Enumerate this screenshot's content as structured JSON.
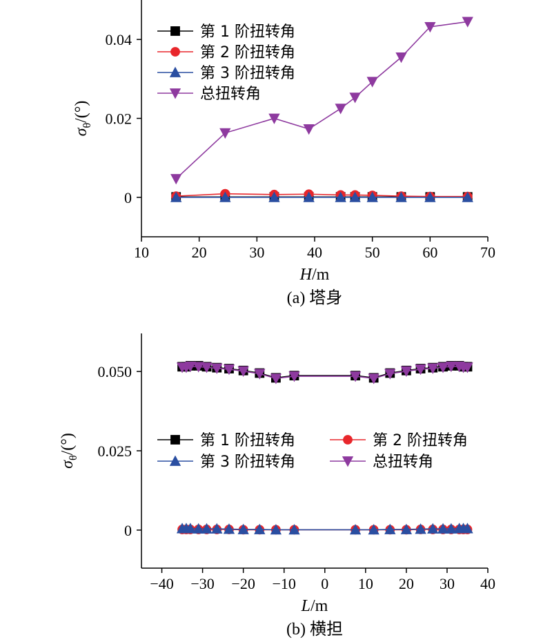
{
  "chart_data": [
    {
      "type": "line",
      "caption": "(a) 塔身",
      "ylabel_main": "σ",
      "ylabel_sub": "θ",
      "ylabel_tail": "/(°)",
      "xlabel_var": "H",
      "xlabel_unit": "/m",
      "xlim": [
        10,
        70
      ],
      "ylim": [
        -0.01,
        0.05
      ],
      "xticks": [
        10,
        20,
        30,
        40,
        50,
        60,
        70
      ],
      "yticks": [
        0,
        0.02,
        0.04
      ],
      "ytick_labels": [
        "0",
        "0.02",
        "0.04"
      ],
      "legend_position": "top-left",
      "x": [
        16,
        24.5,
        33,
        39,
        44.5,
        47,
        50,
        55,
        60,
        66.5
      ],
      "series": [
        {
          "name": "第 1 阶扭转角",
          "color": "#000000",
          "marker": "square",
          "values": [
            0.0001,
            0.0001,
            0.0001,
            0.0001,
            0.0001,
            0.0001,
            0.0001,
            0.0001,
            0.0001,
            0.0001
          ]
        },
        {
          "name": "第 2 阶扭转角",
          "color": "#e8262b",
          "marker": "circle",
          "values": [
            0.0003,
            0.0009,
            0.0007,
            0.0008,
            0.0006,
            0.0006,
            0.0005,
            0.0003,
            0.0002,
            0.0002
          ]
        },
        {
          "name": "第 3 阶扭转角",
          "color": "#2a4ea1",
          "marker": "triangle-up",
          "values": [
            0.0,
            0.0,
            0.0,
            0.0,
            0.0,
            0.0,
            0.0,
            0.0,
            0.0,
            0.0
          ]
        },
        {
          "name": "总扭转角",
          "color": "#8e3a9f",
          "marker": "triangle-down",
          "values": [
            0.0047,
            0.0163,
            0.02,
            0.0173,
            0.0225,
            0.0253,
            0.0293,
            0.0355,
            0.0432,
            0.0445
          ]
        }
      ]
    },
    {
      "type": "line",
      "caption": "(b) 横担",
      "ylabel_main": "σ",
      "ylabel_sub": "θ",
      "ylabel_tail": "/(°)",
      "xlabel_var": "L",
      "xlabel_unit": "/m",
      "xlim": [
        -45,
        40
      ],
      "ylim": [
        -0.012,
        0.062
      ],
      "xticks": [
        -40,
        -30,
        -20,
        -10,
        0,
        10,
        20,
        30,
        40
      ],
      "xtick_labels": [
        "−40",
        "−30",
        "−20",
        "−10",
        "0",
        "10",
        "20",
        "30",
        "40"
      ],
      "yticks": [
        0,
        0.025,
        0.05
      ],
      "ytick_labels": [
        "0",
        "0.025",
        "0.050"
      ],
      "legend_position": "center",
      "x": [
        -35,
        -34,
        -33,
        -31,
        -29,
        -26.5,
        -23.5,
        -20,
        -16,
        -12,
        -7.5,
        7.5,
        12,
        16,
        20,
        23.5,
        26.5,
        29,
        31,
        33,
        34,
        35
      ],
      "series": [
        {
          "name": "第 1 阶扭转角",
          "color": "#000000",
          "marker": "square",
          "values": [
            0.0515,
            0.0515,
            0.0518,
            0.0518,
            0.0515,
            0.0512,
            0.0509,
            0.0503,
            0.0495,
            0.048,
            0.0487,
            0.0487,
            0.048,
            0.0495,
            0.0503,
            0.0509,
            0.0512,
            0.0515,
            0.0518,
            0.0518,
            0.0515,
            0.0515
          ]
        },
        {
          "name": "第 2 阶扭转角",
          "color": "#e8262b",
          "marker": "circle",
          "values": [
            0.0002,
            0.0002,
            0.0002,
            0.0002,
            0.0002,
            0.0002,
            0.0002,
            0.0001,
            0.0001,
            0.0001,
            0.0001,
            0.0001,
            0.0001,
            0.0001,
            0.0001,
            0.0002,
            0.0002,
            0.0002,
            0.0002,
            0.0002,
            0.0002,
            0.0002
          ]
        },
        {
          "name": "第 3 阶扭转角",
          "color": "#2a4ea1",
          "marker": "triangle-up",
          "values": [
            0.0005,
            0.0005,
            0.0005,
            0.0004,
            0.0004,
            0.0004,
            0.0003,
            0.0002,
            0.0002,
            0.0001,
            0.0001,
            0.0001,
            0.0001,
            0.0002,
            0.0002,
            0.0003,
            0.0004,
            0.0004,
            0.0004,
            0.0005,
            0.0005,
            0.0005
          ]
        },
        {
          "name": "总扭转角",
          "color": "#8e3a9f",
          "marker": "triangle-down",
          "values": [
            0.0513,
            0.0513,
            0.0516,
            0.0515,
            0.0513,
            0.051,
            0.0507,
            0.0501,
            0.0493,
            0.0478,
            0.0485,
            0.0485,
            0.0478,
            0.0493,
            0.0501,
            0.0507,
            0.051,
            0.0513,
            0.0516,
            0.0516,
            0.0513,
            0.0513
          ]
        }
      ]
    }
  ]
}
